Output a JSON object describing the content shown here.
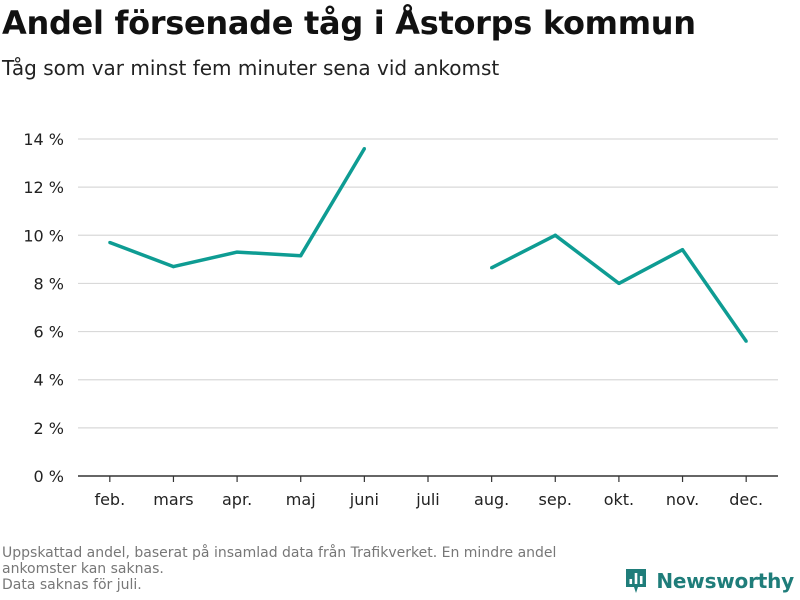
{
  "title": "Andel försenade tåg i Åstorps kommun",
  "subtitle": "Tåg som var minst fem minuter sena vid ankomst",
  "footnote": {
    "lines": [
      "Uppskattad andel, baserat på insamlad data från Trafikverket. En mindre andel",
      "ankomster kan saknas.",
      "Data saknas för juli."
    ]
  },
  "brand": {
    "name": "Newsworthy",
    "icon": "bar-chart-logo-icon",
    "color": "#1f7d7a"
  },
  "colors": {
    "line": "#0e9c93",
    "grid": "#d9d9d9",
    "axis": "#333333",
    "text": "#222222"
  },
  "chart_data": {
    "type": "line",
    "categories": [
      "feb.",
      "mars",
      "apr.",
      "maj",
      "juni",
      "juli",
      "aug.",
      "sep.",
      "okt.",
      "nov.",
      "dec."
    ],
    "series": [
      {
        "values": [
          9.7,
          8.7,
          9.3,
          9.15,
          13.6,
          null,
          8.65,
          10.0,
          8.0,
          9.4,
          5.6
        ]
      }
    ],
    "ylim": [
      0,
      14
    ],
    "yticks": [
      0,
      2,
      4,
      6,
      8,
      10,
      12,
      14
    ],
    "ytick_labels": [
      "0 %",
      "2 %",
      "4 %",
      "6 %",
      "8 %",
      "10 %",
      "12 %",
      "14 %"
    ],
    "grid": true,
    "xlabel": "",
    "ylabel": ""
  }
}
